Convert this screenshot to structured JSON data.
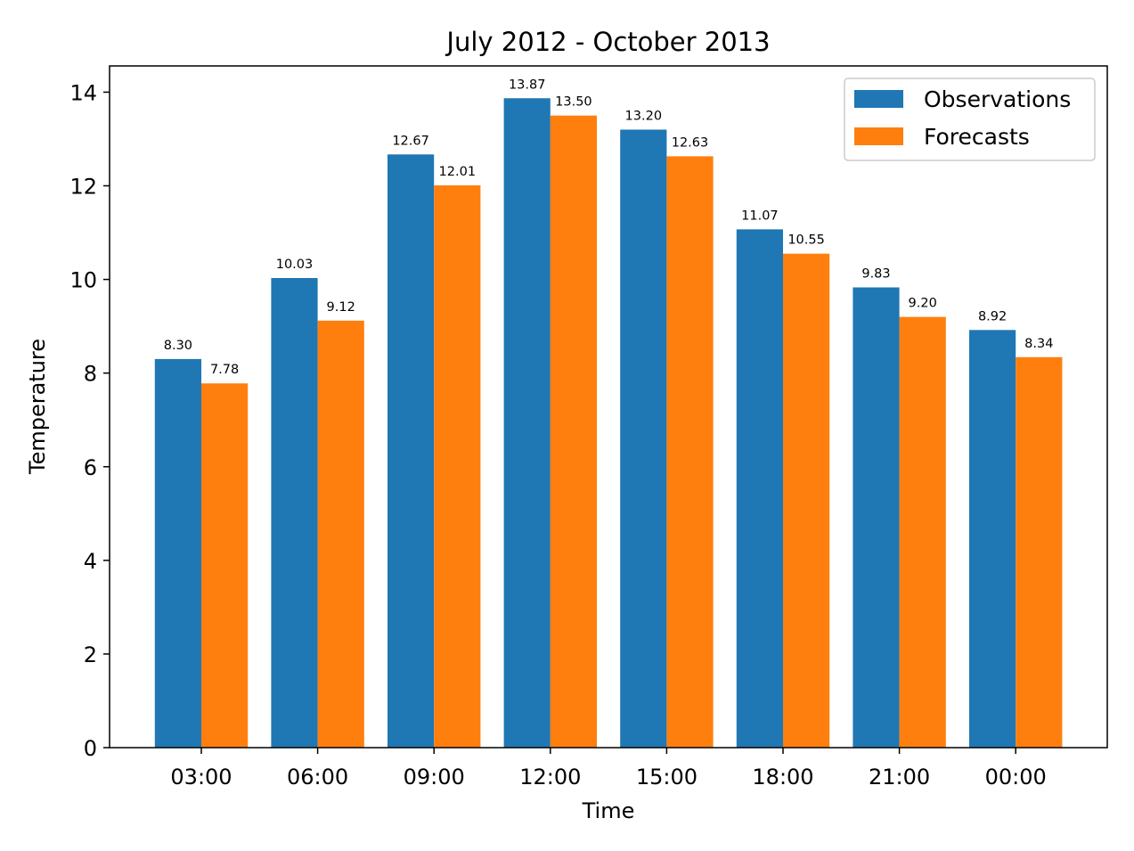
{
  "chart_data": {
    "type": "bar",
    "title": "July 2012 - October 2013",
    "xlabel": "Time",
    "ylabel": "Temperature",
    "categories": [
      "03:00",
      "06:00",
      "09:00",
      "12:00",
      "15:00",
      "18:00",
      "21:00",
      "00:00"
    ],
    "ylim": [
      0,
      14.56
    ],
    "yticks": [
      0,
      2,
      4,
      6,
      8,
      10,
      12,
      14
    ],
    "series": [
      {
        "name": "Observations",
        "color": "#1f77b4",
        "values": [
          8.3,
          10.03,
          12.67,
          13.87,
          13.2,
          11.07,
          9.83,
          8.92
        ],
        "labels": [
          "8.30",
          "10.03",
          "12.67",
          "13.87",
          "13.20",
          "11.07",
          "9.83",
          "8.92"
        ]
      },
      {
        "name": "Forecasts",
        "color": "#ff7f0e",
        "values": [
          7.78,
          9.12,
          12.01,
          13.5,
          12.63,
          10.55,
          9.2,
          8.34
        ],
        "labels": [
          "7.78",
          "9.12",
          "12.01",
          "13.50",
          "12.63",
          "10.55",
          "9.20",
          "8.34"
        ]
      }
    ],
    "legend_position": "top-right",
    "grid": false
  }
}
